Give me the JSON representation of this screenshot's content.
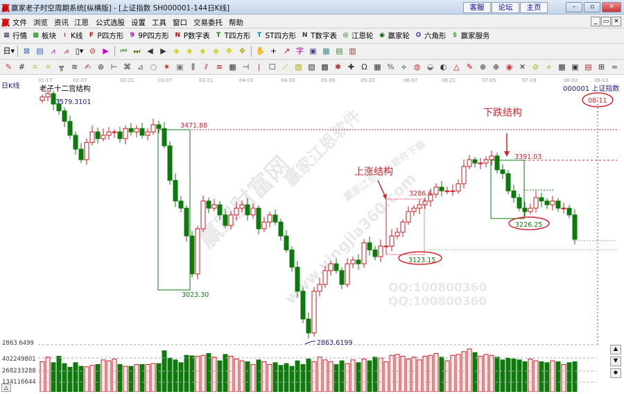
{
  "window": {
    "title": "赢家老子时空周期系统[纵横版] - [上证指数  SH000001-144日K线]",
    "buttons": [
      "客服",
      "论坛",
      "主页"
    ],
    "logo": "赢"
  },
  "menu": [
    "文件",
    "浏览",
    "资讯",
    "江恩",
    "公式选股",
    "设置",
    "工具",
    "窗口",
    "交易委托",
    "帮助"
  ],
  "toolbar1": [
    {
      "icon": "quote-icon",
      "glyph": "▦",
      "color": "#335",
      "label": "行情"
    },
    {
      "icon": "sector-icon",
      "glyph": "▩",
      "color": "#080",
      "label": "板块"
    },
    {
      "icon": "kline-icon",
      "glyph": "≀",
      "color": "#c00",
      "label": "K线"
    },
    {
      "icon": "p-square-icon",
      "glyph": "F",
      "color": "#c00",
      "label": "P四方形"
    },
    {
      "icon": "9p-square-icon",
      "glyph": "9",
      "color": "#a0a",
      "label": "9P四方形"
    },
    {
      "icon": "p-number-icon",
      "glyph": "N",
      "color": "#c00",
      "label": "P数字表"
    },
    {
      "icon": "t-square-icon",
      "glyph": "T",
      "color": "#080",
      "label": "T四方形"
    },
    {
      "icon": "st-square-icon",
      "glyph": "T",
      "color": "#08a",
      "label": "ST四方形"
    },
    {
      "icon": "t-number-icon",
      "glyph": "N",
      "color": "#333",
      "label": "T数字表"
    },
    {
      "icon": "gann-wheel-icon",
      "glyph": "◎",
      "color": "#060",
      "label": "江恩轮"
    },
    {
      "icon": "winner-wheel-icon",
      "glyph": "◉",
      "color": "#060",
      "label": "赢家轮"
    },
    {
      "icon": "hexagon-icon",
      "glyph": "✪",
      "color": "#33a",
      "label": "六角形"
    },
    {
      "icon": "winner-service-icon",
      "glyph": "$",
      "color": "#3a3",
      "label": "赢家服务"
    }
  ],
  "toolbar2": [
    {
      "icon": "period-day-icon",
      "glyph": "日▾",
      "color": "#000"
    },
    {
      "sep": true
    },
    {
      "icon": "chart-view-icon",
      "glyph": "⊠",
      "color": "#36c"
    },
    {
      "icon": "doc-icon",
      "glyph": "▤",
      "color": "#36c"
    },
    {
      "icon": "line-up-icon",
      "glyph": "⩘",
      "color": "#c0c"
    },
    {
      "icon": "line-up2-icon",
      "glyph": "⩘",
      "color": "#c00"
    },
    {
      "icon": "candle-type-icon",
      "glyph": "▯▾",
      "color": "#000"
    },
    {
      "icon": "indicator-icon",
      "glyph": "⊘",
      "color": "#c33"
    },
    {
      "icon": "flag-icon",
      "glyph": "▶",
      "color": "#c0c"
    },
    {
      "sep": true
    },
    {
      "icon": "first-icon",
      "glyph": "⏮",
      "color": "#4a4"
    },
    {
      "icon": "last-icon",
      "glyph": "⏭",
      "color": "#660"
    },
    {
      "icon": "prev-icon",
      "glyph": "◀",
      "color": "#333"
    },
    {
      "icon": "next-icon",
      "glyph": "▶",
      "color": "#333"
    },
    {
      "icon": "zoom-in-h-icon",
      "glyph": "◈",
      "color": "#cc0"
    },
    {
      "icon": "zoom-out-h-icon",
      "glyph": "◈",
      "color": "#cc0"
    },
    {
      "icon": "zoom-in-v-icon",
      "glyph": "◈",
      "color": "#cc0"
    },
    {
      "icon": "zoom-out-v-icon",
      "glyph": "◈",
      "color": "#cc0"
    },
    {
      "icon": "zoom-all-icon",
      "glyph": "✥",
      "color": "#cc0"
    },
    {
      "icon": "zoom-reset-icon",
      "glyph": "✥",
      "color": "#aa0"
    },
    {
      "sep": true
    },
    {
      "icon": "hand-icon",
      "glyph": "✋",
      "color": "#333"
    },
    {
      "icon": "crosshair-icon",
      "glyph": "+",
      "color": "#000"
    },
    {
      "icon": "draw-line-icon",
      "glyph": "↗",
      "color": "#c00"
    },
    {
      "icon": "text-icon",
      "glyph": "字",
      "color": "#a0a"
    },
    {
      "icon": "tool-a-icon",
      "glyph": "▣",
      "color": "#448"
    },
    {
      "icon": "tool-b-icon",
      "glyph": "▦",
      "color": "#488"
    },
    {
      "icon": "tool-c-icon",
      "glyph": "▤",
      "color": "#484"
    },
    {
      "icon": "tool-d-icon",
      "glyph": "▥",
      "color": "#844"
    }
  ],
  "toolbar3": [
    "✎",
    "#",
    "⌗",
    "⌗",
    "╦",
    "≋",
    "✍",
    "⊛",
    "⊢",
    "⌘",
    "⊿",
    "◌",
    "✷",
    "▣",
    "⫼",
    "⫽",
    "≡",
    "▦",
    "⊣",
    "|",
    "☐",
    "⟋",
    "▨",
    "▧",
    "▩",
    "✱",
    "✚",
    "Ω",
    "▦",
    "%",
    "⟡",
    "◍",
    "◒",
    "◐",
    "△",
    "✎",
    "⊕",
    "⊕",
    "◉",
    "✕",
    "⊘",
    "⟡",
    "▦",
    "▣",
    "▤",
    "⊞",
    "∞"
  ],
  "chart": {
    "period_label": "日K线",
    "indicator_title": "老子十二宫结构",
    "symbol_label": "000001 上证指数",
    "dates": [
      "01-17",
      "02-07",
      "02-21",
      "03-07",
      "03-21",
      "04-03",
      "04-20",
      "05-06",
      "05-20",
      "06-07",
      "06-21",
      "07-05",
      "07-19",
      "08-02",
      "08-13"
    ],
    "highlight_date": "08-11",
    "annotations": {
      "high": "3579.3101",
      "box1_top": "3471.88",
      "box1_bottom": "3023.30",
      "low": "2863.6199",
      "up_top": "3286.6",
      "up_bottom": "3123.15",
      "down_top": "3391.03",
      "down_bottom": "3226.25",
      "up_label": "上涨结构",
      "down_label": "下跌结构"
    },
    "volume_axis": [
      "2863.6499",
      "402249801",
      "268233288",
      "134116644"
    ],
    "colors": {
      "up": "#c8171e",
      "down": "#0e7a0e",
      "annotation": "#d0262d",
      "label_blue": "#1c1c8a"
    }
  },
  "chart_data": {
    "type": "candlestick",
    "ylim": [
      2860,
      3600
    ],
    "close": [
      3590,
      3600,
      3569,
      3549,
      3518,
      3477,
      3436,
      3405,
      3456,
      3487,
      3467,
      3477,
      3487,
      3487,
      3467,
      3497,
      3487,
      3497,
      3477,
      3487,
      3508,
      3497,
      3446,
      3344,
      3283,
      3262,
      3180,
      3068,
      3201,
      3283,
      3262,
      3272,
      3242,
      3211,
      3242,
      3262,
      3272,
      3242,
      3262,
      3201,
      3221,
      3242,
      3221,
      3180,
      3139,
      3088,
      3017,
      2935,
      2894,
      3017,
      3037,
      3078,
      3098,
      3078,
      3037,
      3098,
      3109,
      3098,
      3160,
      3139,
      3119,
      3150,
      3150,
      3180,
      3191,
      3221,
      3252,
      3262,
      3272,
      3283,
      3303,
      3324,
      3313,
      3313,
      3313,
      3334,
      3385,
      3405,
      3395,
      3395,
      3405,
      3416,
      3375,
      3364,
      3313,
      3293,
      3262,
      3252,
      3262,
      3293,
      3283,
      3272,
      3283,
      3262,
      3262,
      3242,
      3170
    ],
    "volume": [
      330,
      380,
      320,
      390,
      310,
      270,
      320,
      280,
      275,
      290,
      300,
      350,
      340,
      360,
      300,
      280,
      280,
      300,
      300,
      300,
      310,
      310,
      450,
      370,
      350,
      320,
      400,
      395,
      390,
      400,
      420,
      380,
      340,
      410,
      390,
      360,
      340,
      330,
      300,
      350,
      330,
      300,
      320,
      290,
      310,
      280,
      340,
      300,
      360,
      330,
      380,
      350,
      330,
      300,
      340,
      310,
      350,
      320,
      360,
      340,
      380,
      370,
      330,
      400,
      410,
      390,
      360,
      380,
      350,
      390,
      400,
      420,
      380,
      340,
      400,
      410,
      440,
      470,
      430,
      390,
      410,
      400,
      380,
      350,
      370,
      360,
      350,
      330,
      360,
      340,
      330,
      320,
      340,
      330,
      300,
      320,
      330
    ]
  },
  "watermark": [
    "赢家财富网",
    "赢家江恩软件",
    "www.yingjia360.com",
    "QQ:100800360",
    "QQ:100800360",
    "赢家江恩分析软件下载"
  ]
}
